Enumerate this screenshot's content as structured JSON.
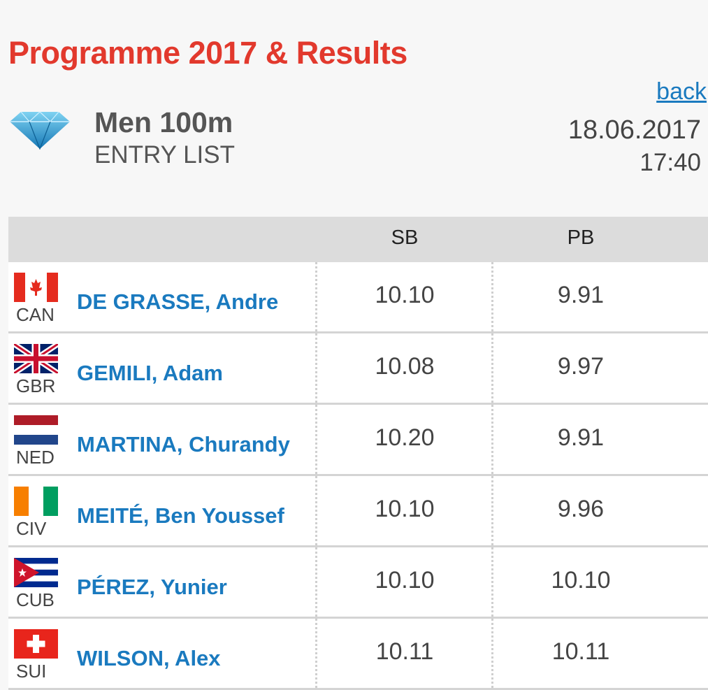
{
  "header": {
    "title": "Programme 2017 & Results",
    "back": "back"
  },
  "event": {
    "name": "Men 100m",
    "subtitle": "ENTRY LIST",
    "date": "18.06.2017",
    "time": "17:40"
  },
  "table": {
    "columns": [
      "SB",
      "PB"
    ],
    "rows": [
      {
        "country": "CAN",
        "name": "DE GRASSE, Andre",
        "sb": "10.10",
        "pb": "9.91"
      },
      {
        "country": "GBR",
        "name": "GEMILI, Adam",
        "sb": "10.08",
        "pb": "9.97"
      },
      {
        "country": "NED",
        "name": "MARTINA, Churandy",
        "sb": "10.20",
        "pb": "9.91"
      },
      {
        "country": "CIV",
        "name": "MEITÉ, Ben Youssef",
        "sb": "10.10",
        "pb": "9.96"
      },
      {
        "country": "CUB",
        "name": "PÉREZ, Yunier",
        "sb": "10.10",
        "pb": "10.10"
      },
      {
        "country": "SUI",
        "name": "WILSON, Alex",
        "sb": "10.11",
        "pb": "10.11"
      }
    ]
  }
}
